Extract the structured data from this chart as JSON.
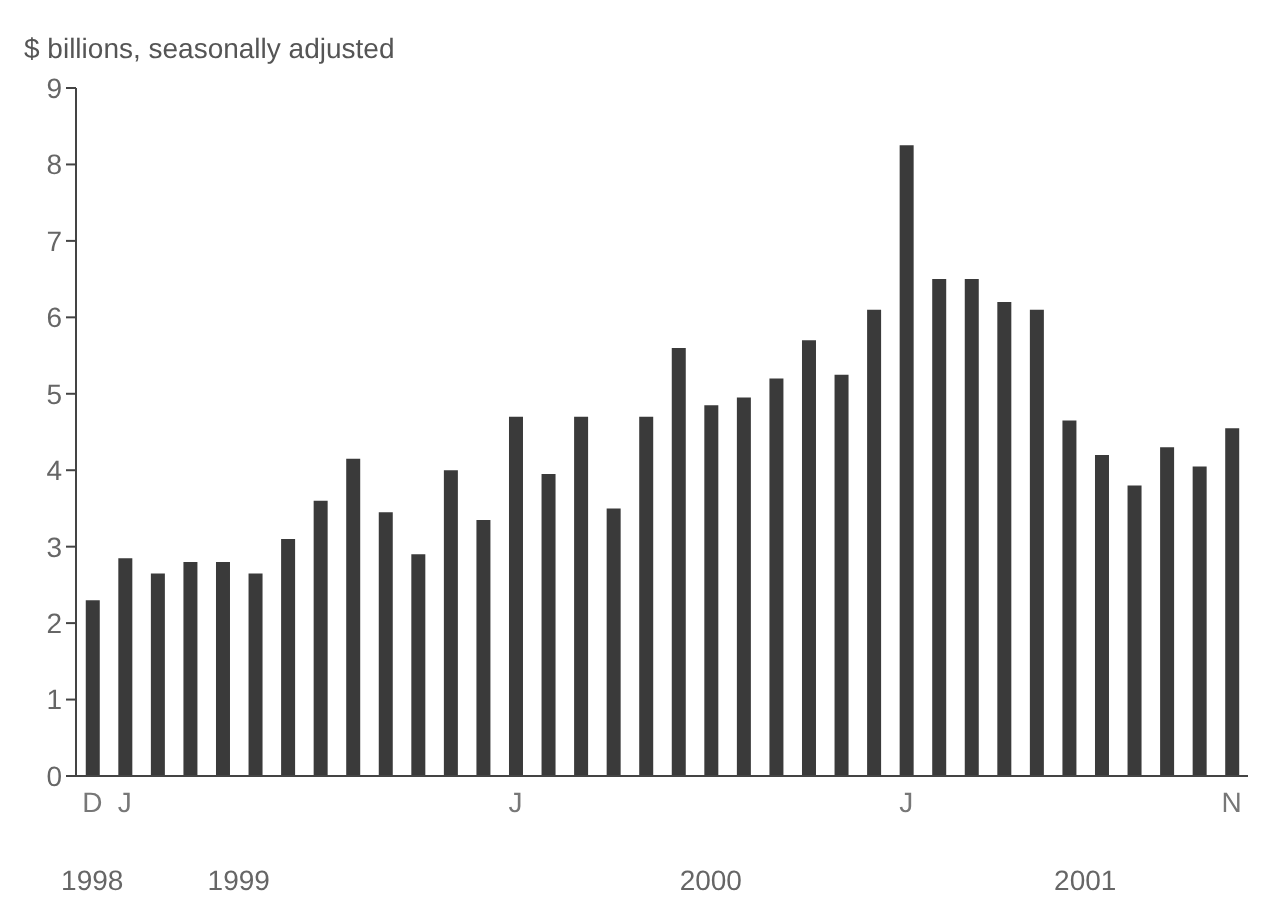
{
  "chart_data": {
    "type": "bar",
    "ylabel": "$ billions, seasonally adjusted",
    "categories": [
      "D",
      "J",
      null,
      null,
      null,
      null,
      null,
      null,
      null,
      null,
      null,
      null,
      null,
      "J",
      null,
      null,
      null,
      null,
      null,
      null,
      null,
      null,
      null,
      null,
      null,
      "J",
      null,
      null,
      null,
      null,
      null,
      null,
      null,
      null,
      null,
      "N"
    ],
    "values": [
      2.3,
      2.85,
      2.65,
      2.8,
      2.8,
      2.65,
      3.1,
      3.6,
      4.15,
      3.45,
      2.9,
      4.0,
      3.35,
      4.7,
      3.95,
      4.7,
      3.5,
      4.7,
      5.6,
      4.85,
      4.95,
      5.2,
      5.7,
      5.25,
      6.1,
      8.25,
      6.5,
      6.5,
      6.2,
      6.1,
      4.65,
      4.2,
      3.8,
      4.3,
      4.05,
      4.55
    ],
    "color": "#3a3a3a",
    "ylim": [
      0,
      9
    ],
    "yticks": [
      0,
      1,
      2,
      3,
      4,
      5,
      6,
      7,
      8,
      9
    ],
    "annotations": [
      "1998",
      "1999",
      "2000",
      "2001"
    ]
  }
}
